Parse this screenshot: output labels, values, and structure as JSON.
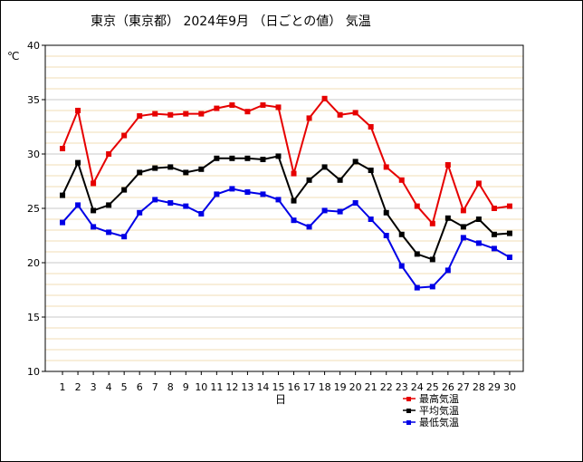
{
  "chart_data": {
    "type": "line",
    "title": "東京（東京都） 2024年9月 （日ごとの値） 気温",
    "xlabel": "日",
    "ylabel": "℃",
    "ylim": [
      10,
      40
    ],
    "yticks": [
      10,
      15,
      20,
      25,
      30,
      35,
      40
    ],
    "x": [
      1,
      2,
      3,
      4,
      5,
      6,
      7,
      8,
      9,
      10,
      11,
      12,
      13,
      14,
      15,
      16,
      17,
      18,
      19,
      20,
      21,
      22,
      23,
      24,
      25,
      26,
      27,
      28,
      29,
      30
    ],
    "grid": true,
    "legend_position": "bottom-right",
    "series": [
      {
        "name": "最高気温",
        "color": "#e60000",
        "values": [
          30.5,
          34.0,
          27.3,
          30.0,
          31.7,
          33.5,
          33.7,
          33.6,
          33.7,
          33.7,
          34.2,
          34.5,
          33.9,
          34.5,
          34.3,
          28.2,
          33.3,
          35.1,
          33.6,
          33.8,
          32.5,
          28.8,
          27.6,
          25.2,
          23.6,
          29.0,
          24.8,
          27.3,
          25.0,
          25.2
        ]
      },
      {
        "name": "平均気温",
        "color": "#000000",
        "values": [
          26.2,
          29.2,
          24.8,
          25.3,
          26.7,
          28.3,
          28.7,
          28.8,
          28.3,
          28.6,
          29.6,
          29.6,
          29.6,
          29.5,
          29.8,
          25.7,
          27.6,
          28.8,
          27.6,
          29.3,
          28.5,
          24.6,
          22.6,
          20.8,
          20.3,
          24.1,
          23.3,
          24.0,
          22.6,
          22.7
        ]
      },
      {
        "name": "最低気温",
        "color": "#0000e6",
        "values": [
          23.7,
          25.3,
          23.3,
          22.8,
          22.4,
          24.6,
          25.8,
          25.5,
          25.2,
          24.5,
          26.3,
          26.8,
          26.5,
          26.3,
          25.8,
          23.9,
          23.3,
          24.8,
          24.7,
          25.5,
          24.0,
          22.5,
          19.7,
          17.7,
          17.8,
          19.3,
          22.3,
          21.8,
          21.3,
          20.5
        ]
      }
    ]
  }
}
